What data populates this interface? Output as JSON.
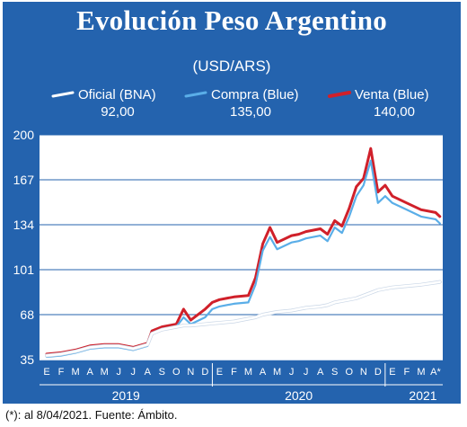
{
  "title": "Evolución Peso Argentino",
  "subtitle": "(USD/ARS)",
  "footnote": "(*): al 8/04/2021. Fuente: Ámbito.",
  "colors": {
    "background": "#2463ae",
    "oficial": "#ffffff",
    "compra": "#5aaee8",
    "venta": "#d0202a",
    "grid": "#ffffff"
  },
  "legend": [
    {
      "label": "Oficial (BNA)",
      "value": "92,00",
      "color": "#ffffff"
    },
    {
      "label": "Compra (Blue)",
      "value": "135,00",
      "color": "#5aaee8"
    },
    {
      "label": "Venta (Blue)",
      "value": "140,00",
      "color": "#d0202a"
    }
  ],
  "chart_data": {
    "type": "line",
    "title": "Evolución Peso Argentino",
    "ylabel": "(USD/ARS)",
    "ylim": [
      35,
      200
    ],
    "yticks": [
      35,
      68,
      101,
      134,
      167,
      200
    ],
    "grid": true,
    "legend_position": "top",
    "month_labels": [
      "E",
      "F",
      "M",
      "A",
      "M",
      "J",
      "J",
      "A",
      "S",
      "O",
      "N",
      "D",
      "E",
      "F",
      "M",
      "A",
      "M",
      "J",
      "J",
      "A",
      "S",
      "O",
      "N",
      "D",
      "E",
      "F",
      "M",
      "A*"
    ],
    "year_labels": [
      "2019",
      "2020",
      "2021"
    ],
    "x": [
      0,
      1,
      2,
      3,
      4,
      5,
      6,
      7,
      7.3,
      8,
      9,
      9.5,
      10,
      11,
      11.5,
      12,
      13,
      14,
      14.5,
      15,
      15.5,
      16,
      17,
      17.5,
      18,
      19,
      19.5,
      20,
      20.5,
      21,
      21.5,
      22,
      22.5,
      23,
      23.5,
      24,
      25,
      26,
      27,
      27.3
    ],
    "series": [
      {
        "name": "Oficial (BNA)",
        "values": [
          38,
          39,
          41,
          44,
          45,
          45,
          43,
          46,
          54,
          57,
          59,
          60,
          60,
          61,
          61.5,
          62,
          63,
          65,
          66,
          68,
          69,
          70,
          71,
          72,
          73,
          74,
          75,
          77,
          78,
          79,
          80,
          82,
          84,
          86,
          87,
          88,
          89,
          90,
          91.5,
          92
        ]
      },
      {
        "name": "Compra (Blue)",
        "values": [
          37,
          38,
          40,
          43,
          44,
          44,
          42,
          45,
          54,
          57,
          59,
          66,
          61,
          66,
          72,
          74,
          76,
          77,
          90,
          115,
          125,
          116,
          121,
          122,
          124,
          126,
          122,
          132,
          128,
          140,
          155,
          163,
          181,
          150,
          155,
          150,
          145,
          140,
          138,
          135
        ]
      },
      {
        "name": "Venta (Blue)",
        "values": [
          39,
          40,
          42,
          45,
          46,
          46,
          44,
          47,
          56,
          59,
          61,
          72,
          64,
          72,
          77,
          79,
          81,
          82,
          95,
          120,
          132,
          121,
          126,
          127,
          129,
          131,
          127,
          137,
          133,
          146,
          162,
          168,
          190,
          158,
          163,
          155,
          150,
          145,
          143,
          140
        ]
      }
    ]
  }
}
